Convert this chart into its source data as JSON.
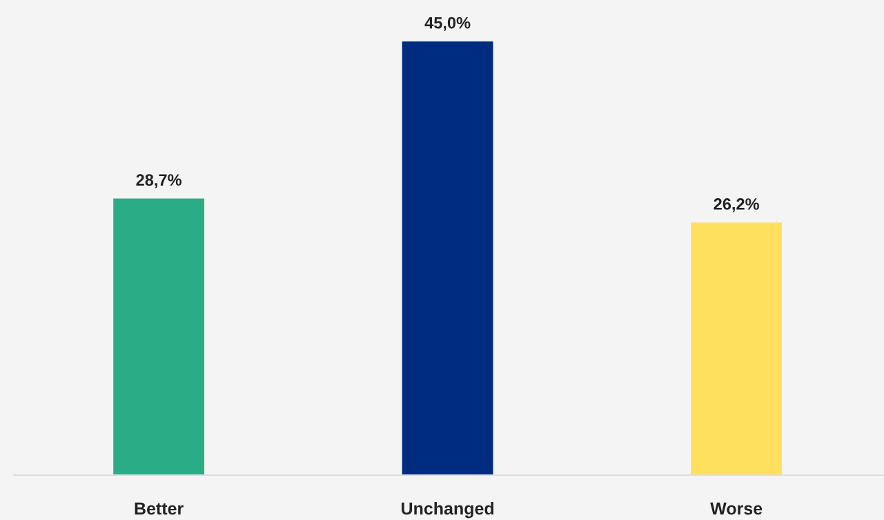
{
  "chart_data": {
    "type": "bar",
    "categories": [
      "Better",
      "Unchanged",
      "Worse"
    ],
    "values": [
      28.7,
      45.0,
      26.2
    ],
    "colors": [
      "#2aad86",
      "#002c80",
      "#ffdf5e"
    ],
    "value_labels": [
      "28,7%",
      "45,0%",
      "26,2%"
    ],
    "grid": false,
    "legend": false
  }
}
